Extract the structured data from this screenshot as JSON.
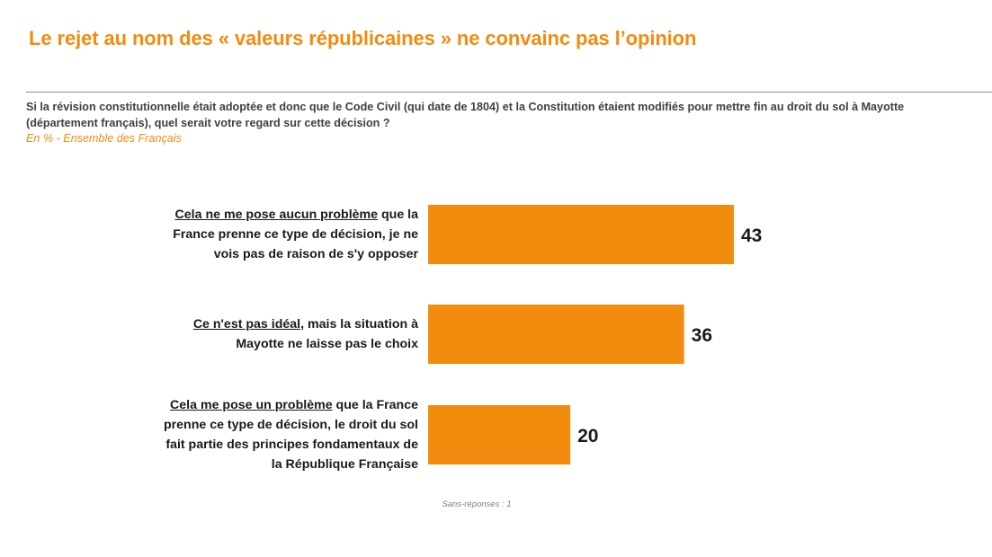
{
  "header": {
    "title": "Le rejet au nom des « valeurs républicaines » ne convainc pas l’opinion",
    "question_lines": [
      "Si la révision constitutionnelle était adoptée et donc que le Code Civil (qui date de 1804) et la Constitution étaient modifiés pour mettre fin au droit du sol à Mayotte",
      "(département français), quel serait votre regard sur cette décision ?"
    ],
    "subtitle": "En % - Ensemble des Français"
  },
  "footnote": "Sans-réponses : 1",
  "colors": {
    "accent": "#f28c0f",
    "bar": "#f28c0f",
    "text": "#1a1a1a"
  },
  "chart_data": {
    "type": "bar",
    "orientation": "horizontal",
    "title": "Le rejet au nom des « valeurs républicaines » ne convainc pas l’opinion",
    "xlabel": "",
    "ylabel": "",
    "xlim": [
      0,
      100
    ],
    "unit": "%",
    "grid": false,
    "legend": "none",
    "categories": [
      {
        "underlined": "Cela ne me pose aucun problème",
        "lines": [
          " que la",
          "France prenne ce type de décision, je ne",
          "vois pas de raison de s'y opposer"
        ]
      },
      {
        "underlined": "Ce n'est pas idéal",
        "lines": [
          ", mais la situation à",
          "Mayotte ne laisse pas le choix"
        ]
      },
      {
        "underlined": "Cela me pose un problème",
        "lines": [
          " que la France",
          "prenne ce type de décision, le droit du sol",
          "fait partie des principes fondamentaux de",
          "la République Française"
        ]
      }
    ],
    "values": [
      43,
      36,
      20
    ],
    "value_labels": [
      "43",
      "36",
      "20"
    ]
  }
}
